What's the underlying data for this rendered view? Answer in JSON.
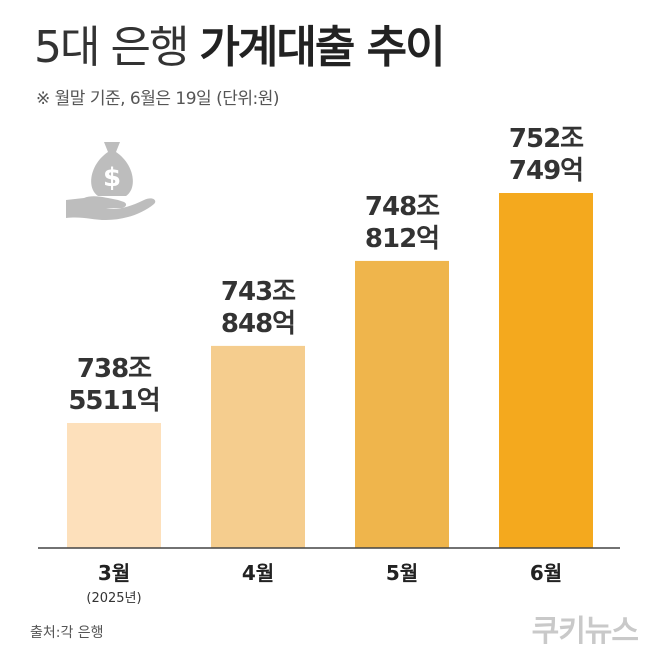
{
  "header": {
    "title_light": "5대 은행",
    "title_bold": "가계대출 추이",
    "subtitle": "※ 월말 기준, 6월은 19일 (단위:원)"
  },
  "footer": {
    "source": "출처:각 은행",
    "logo": "쿠키뉴스"
  },
  "colors": {
    "bars": [
      "#fde0bb",
      "#f5cd8e",
      "#efb54c",
      "#f4a91e"
    ],
    "baseline": "#444444"
  },
  "chart_data": {
    "type": "bar",
    "categories": [
      "3월",
      "4월",
      "5월",
      "6월"
    ],
    "category_sublabels": [
      "(2025년)",
      "",
      "",
      ""
    ],
    "values": [
      738.5511,
      743.0848,
      748.0812,
      752.0749
    ],
    "value_labels": [
      [
        "738조",
        "5511억"
      ],
      [
        "743조",
        "848억"
      ],
      [
        "748조",
        "812억"
      ],
      [
        "752조",
        "749억"
      ]
    ],
    "unit": "원",
    "grid": false,
    "legend": "none"
  }
}
